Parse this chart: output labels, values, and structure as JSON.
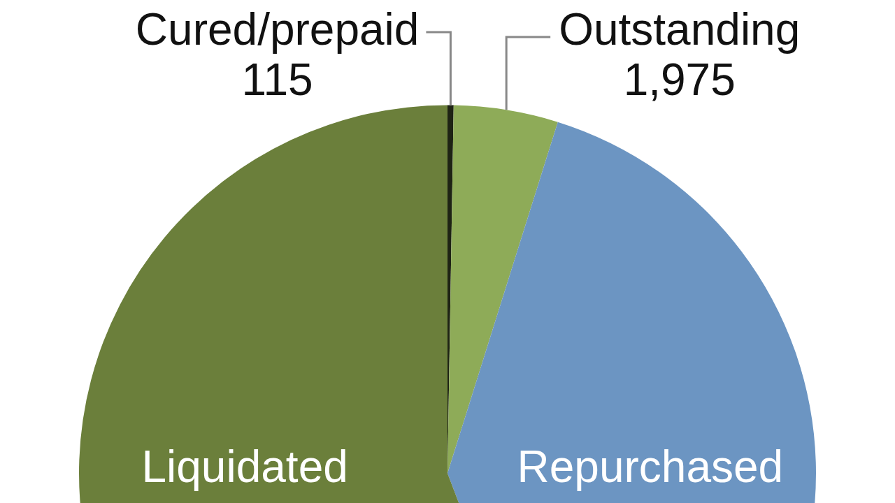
{
  "chart_data": {
    "type": "pie",
    "categories": [
      "Cured/prepaid",
      "Outstanding",
      "Repurchased",
      "Liquidated"
    ],
    "values": [
      115,
      1975,
      17000,
      24100
    ],
    "value_labels": [
      "115",
      "1,975",
      null,
      null
    ],
    "colors": [
      "#1e2314",
      "#8eab58",
      "#6c95c2",
      "#6b7f3b"
    ]
  }
}
